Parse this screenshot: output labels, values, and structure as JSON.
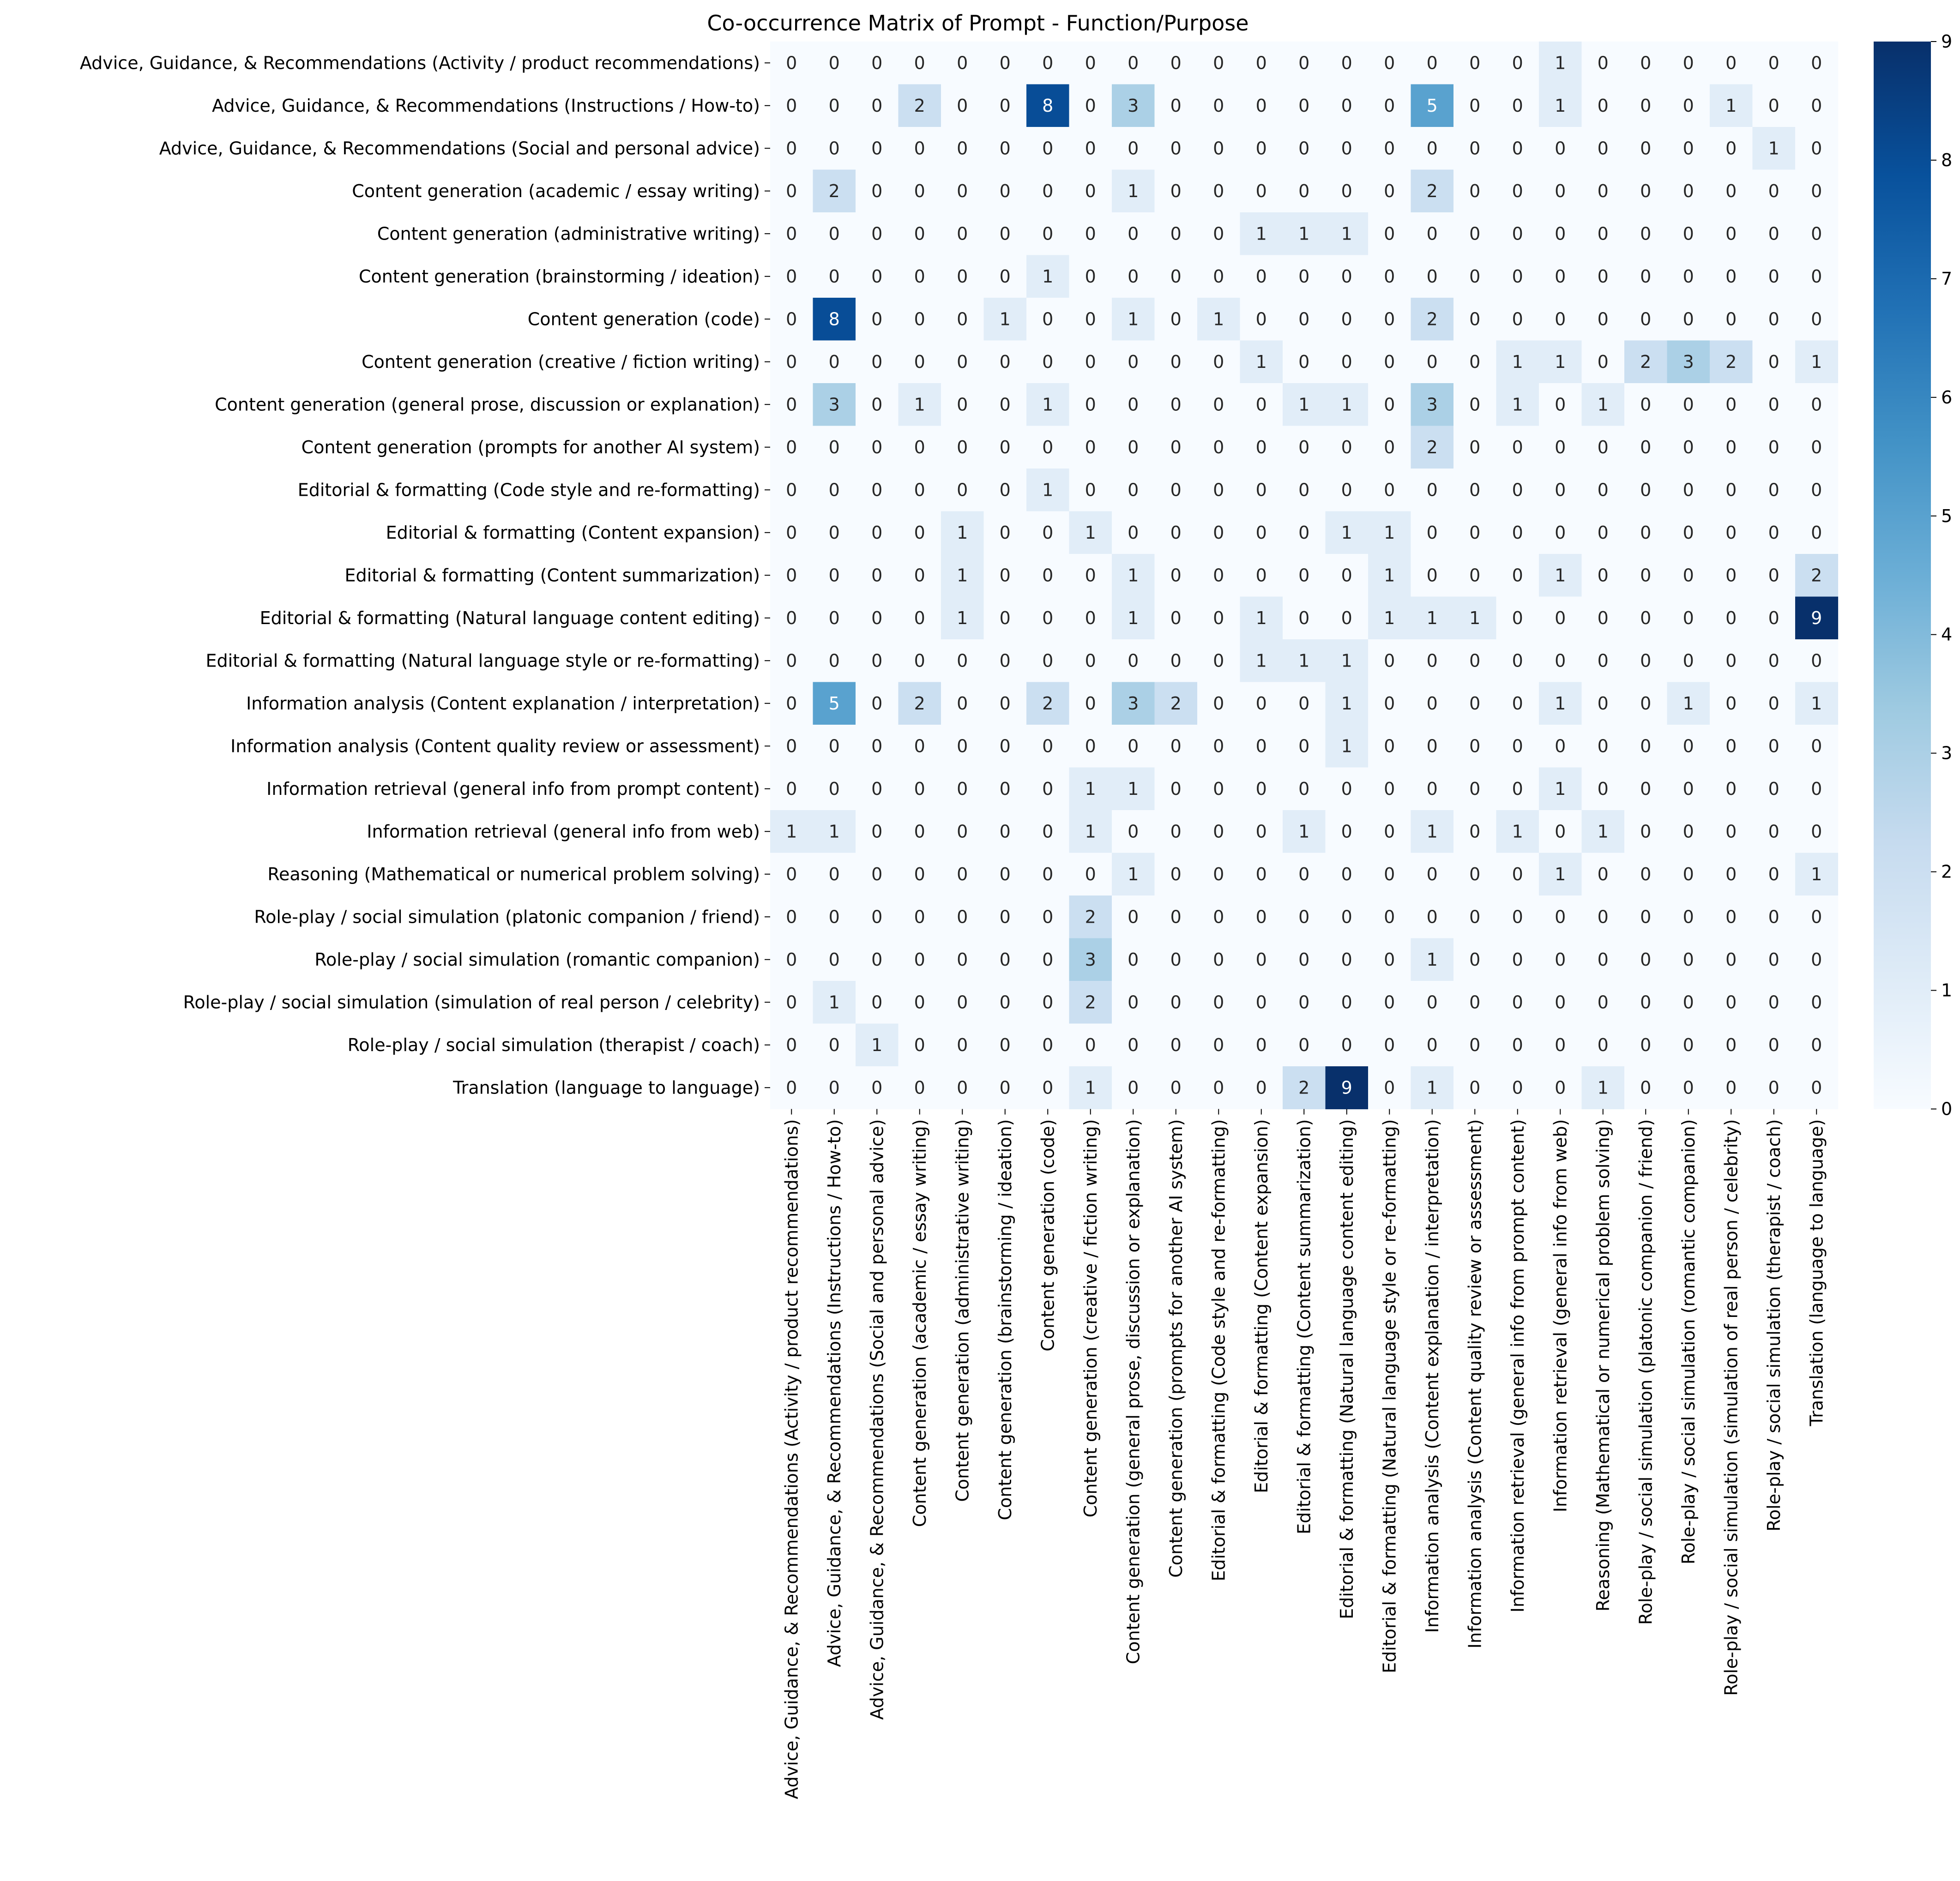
{
  "chart_data": {
    "type": "heatmap",
    "title": "Co-occurrence Matrix of Prompt - Function/Purpose",
    "labels": [
      "Advice, Guidance, & Recommendations (Activity / product recommendations)",
      "Advice, Guidance, & Recommendations (Instructions / How-to)",
      "Advice, Guidance, & Recommendations (Social and personal advice)",
      "Content generation (academic / essay writing)",
      "Content generation (administrative writing)",
      "Content generation (brainstorming / ideation)",
      "Content generation (code)",
      "Content generation (creative / fiction writing)",
      "Content generation (general prose, discussion or explanation)",
      "Content generation (prompts for another AI system)",
      "Editorial & formatting (Code style and re-formatting)",
      "Editorial & formatting (Content expansion)",
      "Editorial & formatting (Content summarization)",
      "Editorial & formatting (Natural language content editing)",
      "Editorial & formatting (Natural language style or re-formatting)",
      "Information analysis (Content explanation / interpretation)",
      "Information analysis (Content quality review or assessment)",
      "Information retrieval (general info from prompt content)",
      "Information retrieval (general info from web)",
      "Reasoning (Mathematical or numerical problem solving)",
      "Role-play / social simulation (platonic companion / friend)",
      "Role-play / social simulation (romantic companion)",
      "Role-play / social simulation (simulation of real person / celebrity)",
      "Role-play / social simulation (therapist / coach)",
      "Translation (language to language)"
    ],
    "matrix": [
      [
        0,
        0,
        0,
        0,
        0,
        0,
        0,
        0,
        0,
        0,
        0,
        0,
        0,
        0,
        0,
        0,
        0,
        0,
        1,
        0,
        0,
        0,
        0,
        0,
        0
      ],
      [
        0,
        0,
        0,
        2,
        0,
        0,
        8,
        0,
        3,
        0,
        0,
        0,
        0,
        0,
        0,
        5,
        0,
        0,
        1,
        0,
        0,
        0,
        1,
        0,
        0
      ],
      [
        0,
        0,
        0,
        0,
        0,
        0,
        0,
        0,
        0,
        0,
        0,
        0,
        0,
        0,
        0,
        0,
        0,
        0,
        0,
        0,
        0,
        0,
        0,
        1,
        0
      ],
      [
        0,
        2,
        0,
        0,
        0,
        0,
        0,
        0,
        1,
        0,
        0,
        0,
        0,
        0,
        0,
        2,
        0,
        0,
        0,
        0,
        0,
        0,
        0,
        0,
        0
      ],
      [
        0,
        0,
        0,
        0,
        0,
        0,
        0,
        0,
        0,
        0,
        0,
        1,
        1,
        1,
        0,
        0,
        0,
        0,
        0,
        0,
        0,
        0,
        0,
        0,
        0
      ],
      [
        0,
        0,
        0,
        0,
        0,
        0,
        1,
        0,
        0,
        0,
        0,
        0,
        0,
        0,
        0,
        0,
        0,
        0,
        0,
        0,
        0,
        0,
        0,
        0,
        0
      ],
      [
        0,
        8,
        0,
        0,
        0,
        1,
        0,
        0,
        1,
        0,
        1,
        0,
        0,
        0,
        0,
        2,
        0,
        0,
        0,
        0,
        0,
        0,
        0,
        0,
        0
      ],
      [
        0,
        0,
        0,
        0,
        0,
        0,
        0,
        0,
        0,
        0,
        0,
        1,
        0,
        0,
        0,
        0,
        0,
        1,
        1,
        0,
        2,
        3,
        2,
        0,
        1
      ],
      [
        0,
        3,
        0,
        1,
        0,
        0,
        1,
        0,
        0,
        0,
        0,
        0,
        1,
        1,
        0,
        3,
        0,
        1,
        0,
        1,
        0,
        0,
        0,
        0,
        0
      ],
      [
        0,
        0,
        0,
        0,
        0,
        0,
        0,
        0,
        0,
        0,
        0,
        0,
        0,
        0,
        0,
        2,
        0,
        0,
        0,
        0,
        0,
        0,
        0,
        0,
        0
      ],
      [
        0,
        0,
        0,
        0,
        0,
        0,
        1,
        0,
        0,
        0,
        0,
        0,
        0,
        0,
        0,
        0,
        0,
        0,
        0,
        0,
        0,
        0,
        0,
        0,
        0
      ],
      [
        0,
        0,
        0,
        0,
        1,
        0,
        0,
        1,
        0,
        0,
        0,
        0,
        0,
        1,
        1,
        0,
        0,
        0,
        0,
        0,
        0,
        0,
        0,
        0,
        0
      ],
      [
        0,
        0,
        0,
        0,
        1,
        0,
        0,
        0,
        1,
        0,
        0,
        0,
        0,
        0,
        1,
        0,
        0,
        0,
        1,
        0,
        0,
        0,
        0,
        0,
        2
      ],
      [
        0,
        0,
        0,
        0,
        1,
        0,
        0,
        0,
        1,
        0,
        0,
        1,
        0,
        0,
        1,
        1,
        1,
        0,
        0,
        0,
        0,
        0,
        0,
        0,
        9
      ],
      [
        0,
        0,
        0,
        0,
        0,
        0,
        0,
        0,
        0,
        0,
        0,
        1,
        1,
        1,
        0,
        0,
        0,
        0,
        0,
        0,
        0,
        0,
        0,
        0,
        0
      ],
      [
        0,
        5,
        0,
        2,
        0,
        0,
        2,
        0,
        3,
        2,
        0,
        0,
        0,
        1,
        0,
        0,
        0,
        0,
        1,
        0,
        0,
        1,
        0,
        0,
        1
      ],
      [
        0,
        0,
        0,
        0,
        0,
        0,
        0,
        0,
        0,
        0,
        0,
        0,
        0,
        1,
        0,
        0,
        0,
        0,
        0,
        0,
        0,
        0,
        0,
        0,
        0
      ],
      [
        0,
        0,
        0,
        0,
        0,
        0,
        0,
        1,
        1,
        0,
        0,
        0,
        0,
        0,
        0,
        0,
        0,
        0,
        1,
        0,
        0,
        0,
        0,
        0,
        0
      ],
      [
        1,
        1,
        0,
        0,
        0,
        0,
        0,
        1,
        0,
        0,
        0,
        0,
        1,
        0,
        0,
        1,
        0,
        1,
        0,
        1,
        0,
        0,
        0,
        0,
        0
      ],
      [
        0,
        0,
        0,
        0,
        0,
        0,
        0,
        0,
        1,
        0,
        0,
        0,
        0,
        0,
        0,
        0,
        0,
        0,
        1,
        0,
        0,
        0,
        0,
        0,
        1
      ],
      [
        0,
        0,
        0,
        0,
        0,
        0,
        0,
        2,
        0,
        0,
        0,
        0,
        0,
        0,
        0,
        0,
        0,
        0,
        0,
        0,
        0,
        0,
        0,
        0,
        0
      ],
      [
        0,
        0,
        0,
        0,
        0,
        0,
        0,
        3,
        0,
        0,
        0,
        0,
        0,
        0,
        0,
        1,
        0,
        0,
        0,
        0,
        0,
        0,
        0,
        0,
        0
      ],
      [
        0,
        1,
        0,
        0,
        0,
        0,
        0,
        2,
        0,
        0,
        0,
        0,
        0,
        0,
        0,
        0,
        0,
        0,
        0,
        0,
        0,
        0,
        0,
        0,
        0
      ],
      [
        0,
        0,
        1,
        0,
        0,
        0,
        0,
        0,
        0,
        0,
        0,
        0,
        0,
        0,
        0,
        0,
        0,
        0,
        0,
        0,
        0,
        0,
        0,
        0,
        0
      ],
      [
        0,
        0,
        0,
        0,
        0,
        0,
        0,
        1,
        0,
        0,
        0,
        0,
        2,
        9,
        0,
        1,
        0,
        0,
        0,
        1,
        0,
        0,
        0,
        0,
        0
      ]
    ],
    "vmin": 0,
    "vmax": 9,
    "colorbar_ticks": [
      0,
      1,
      2,
      3,
      4,
      5,
      6,
      7,
      8,
      9
    ],
    "colormap": "Blues",
    "colormap_stops": [
      "#f7fbff",
      "#deebf7",
      "#c6dbef",
      "#9ecae1",
      "#6baed6",
      "#4292c6",
      "#2171b5",
      "#08519c",
      "#08306b"
    ],
    "annotation_colors": {
      "light_cell": "#262626",
      "dark_cell": "#ffffff"
    }
  }
}
